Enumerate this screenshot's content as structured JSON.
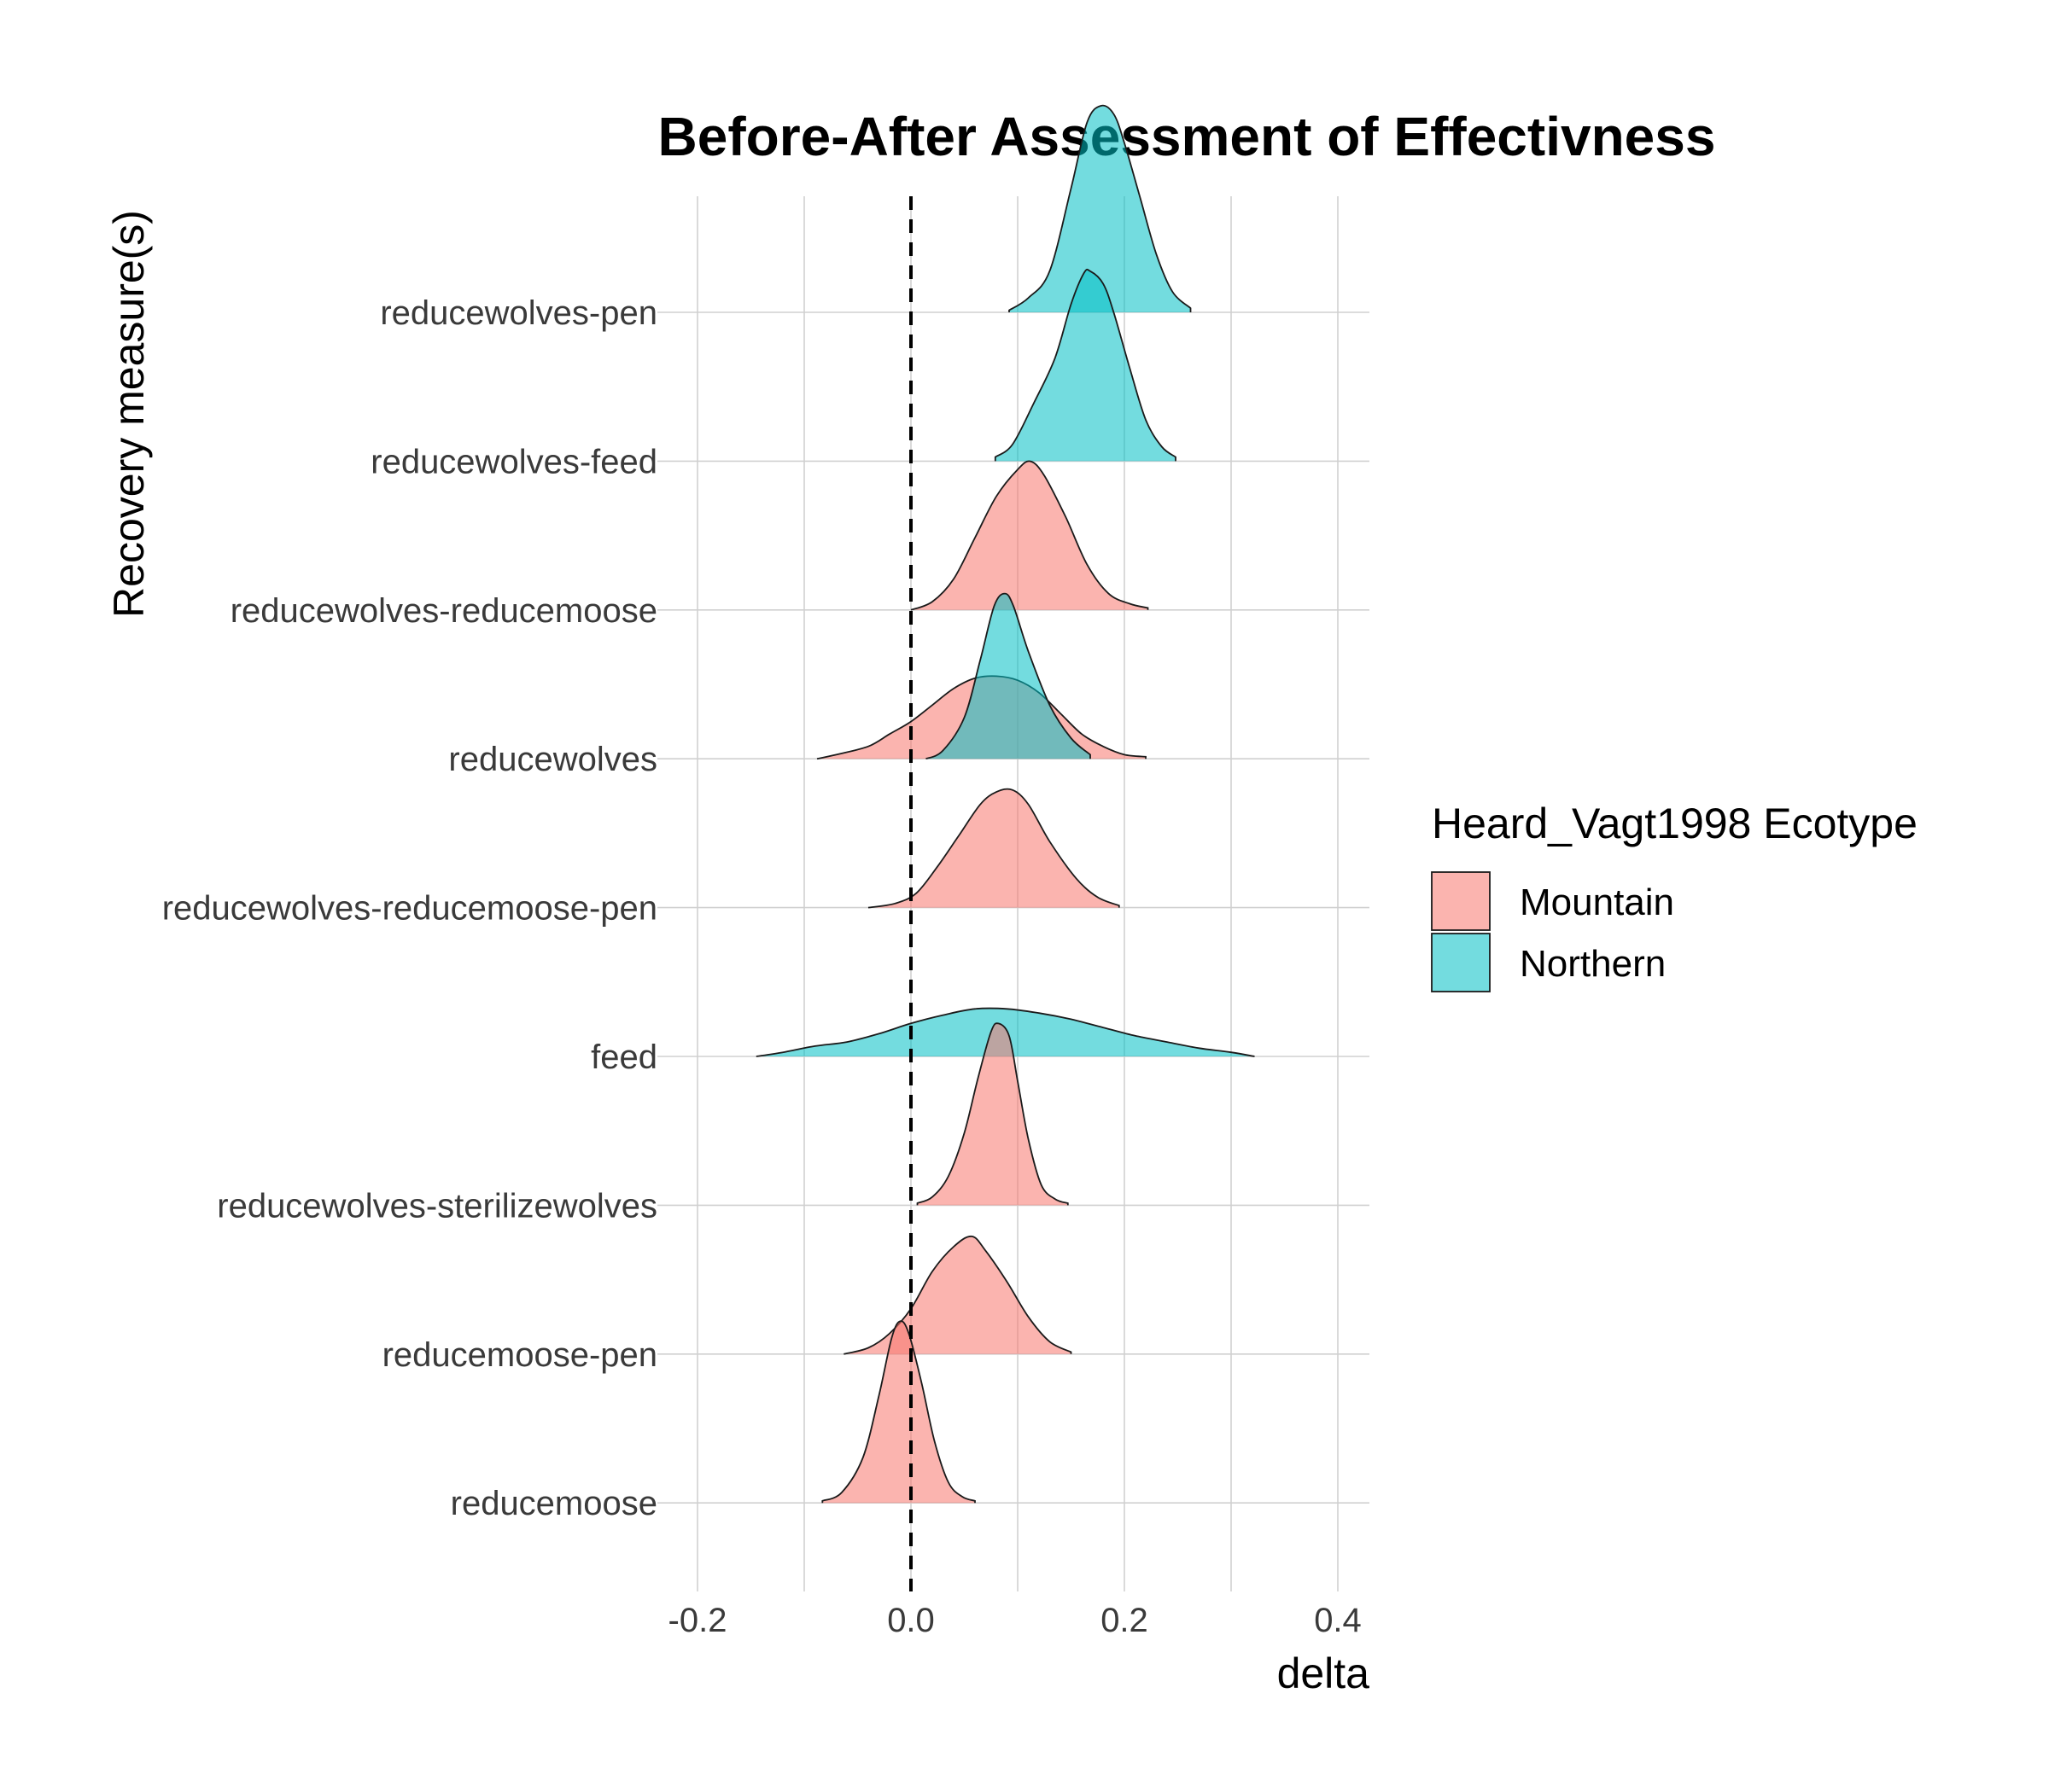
{
  "chart_data": {
    "type": "ridgeline",
    "title": "Before-After Assessment of Effectivness",
    "xlabel": "delta",
    "ylabel": "Recovery measure(s)",
    "xlim": [
      -0.2,
      0.43
    ],
    "x_ticks": [
      "-0.2",
      "0.0",
      "0.2",
      "0.4"
    ],
    "x_tick_values": [
      -0.2,
      0.0,
      0.2,
      0.4
    ],
    "reference_line": {
      "x": 0,
      "style": "dashed"
    },
    "grid": true,
    "legend": {
      "title": "Heard_Vagt1998 Ecotype",
      "position": "right",
      "entries": [
        {
          "name": "Mountain",
          "color": "#F8766D"
        },
        {
          "name": "Northern",
          "color": "#00BFC4"
        }
      ]
    },
    "categories": [
      "reducewolves-pen",
      "reducewolves-feed",
      "reducewolves-reducemoose",
      "reducewolves",
      "reducewolves-reducemoose-pen",
      "feed",
      "reducewolves-sterilizewolves",
      "reducemoose-pen",
      "reducemoose"
    ],
    "distributions": [
      {
        "category": "reducewolves-pen",
        "ecotype": "Northern",
        "points": [
          [
            0.092,
            0.01
          ],
          [
            0.11,
            0.07
          ],
          [
            0.13,
            0.2
          ],
          [
            0.15,
            0.6
          ],
          [
            0.165,
            0.92
          ],
          [
            0.178,
            1.0
          ],
          [
            0.19,
            0.96
          ],
          [
            0.2,
            0.82
          ],
          [
            0.215,
            0.55
          ],
          [
            0.23,
            0.28
          ],
          [
            0.245,
            0.1
          ],
          [
            0.262,
            0.02
          ]
        ]
      },
      {
        "category": "reducewolves-feed",
        "ecotype": "Northern",
        "points": [
          [
            0.079,
            0.02
          ],
          [
            0.095,
            0.08
          ],
          [
            0.115,
            0.28
          ],
          [
            0.135,
            0.5
          ],
          [
            0.15,
            0.76
          ],
          [
            0.162,
            0.91
          ],
          [
            0.168,
            0.92
          ],
          [
            0.18,
            0.86
          ],
          [
            0.19,
            0.72
          ],
          [
            0.205,
            0.45
          ],
          [
            0.22,
            0.2
          ],
          [
            0.235,
            0.07
          ],
          [
            0.248,
            0.02
          ]
        ]
      },
      {
        "category": "reducewolves-reducemoose",
        "ecotype": "Mountain",
        "points": [
          [
            0.0,
            0.0
          ],
          [
            0.02,
            0.04
          ],
          [
            0.04,
            0.15
          ],
          [
            0.06,
            0.35
          ],
          [
            0.08,
            0.55
          ],
          [
            0.1,
            0.68
          ],
          [
            0.112,
            0.72
          ],
          [
            0.125,
            0.65
          ],
          [
            0.145,
            0.45
          ],
          [
            0.165,
            0.22
          ],
          [
            0.185,
            0.08
          ],
          [
            0.205,
            0.03
          ],
          [
            0.222,
            0.01
          ]
        ]
      },
      {
        "category": "reducewolves",
        "ecotype": "Mountain",
        "points": [
          [
            -0.088,
            0.0
          ],
          [
            -0.07,
            0.02
          ],
          [
            -0.04,
            0.06
          ],
          [
            -0.02,
            0.12
          ],
          [
            0.0,
            0.18
          ],
          [
            0.02,
            0.26
          ],
          [
            0.04,
            0.34
          ],
          [
            0.06,
            0.39
          ],
          [
            0.08,
            0.4
          ],
          [
            0.1,
            0.38
          ],
          [
            0.12,
            0.32
          ],
          [
            0.14,
            0.22
          ],
          [
            0.16,
            0.12
          ],
          [
            0.18,
            0.06
          ],
          [
            0.2,
            0.02
          ],
          [
            0.22,
            0.01
          ]
        ]
      },
      {
        "category": "reducewolves",
        "ecotype": "Northern",
        "points": [
          [
            0.014,
            0.0
          ],
          [
            0.03,
            0.04
          ],
          [
            0.05,
            0.2
          ],
          [
            0.065,
            0.48
          ],
          [
            0.078,
            0.74
          ],
          [
            0.088,
            0.8
          ],
          [
            0.096,
            0.74
          ],
          [
            0.11,
            0.52
          ],
          [
            0.13,
            0.26
          ],
          [
            0.15,
            0.1
          ],
          [
            0.168,
            0.02
          ]
        ]
      },
      {
        "category": "reducewolves-reducemoose-pen",
        "ecotype": "Mountain",
        "points": [
          [
            -0.04,
            0.0
          ],
          [
            -0.015,
            0.02
          ],
          [
            0.005,
            0.07
          ],
          [
            0.025,
            0.2
          ],
          [
            0.045,
            0.35
          ],
          [
            0.065,
            0.5
          ],
          [
            0.08,
            0.56
          ],
          [
            0.095,
            0.57
          ],
          [
            0.11,
            0.5
          ],
          [
            0.13,
            0.32
          ],
          [
            0.155,
            0.14
          ],
          [
            0.175,
            0.05
          ],
          [
            0.195,
            0.01
          ]
        ]
      },
      {
        "category": "feed",
        "ecotype": "Northern",
        "points": [
          [
            -0.145,
            0.0
          ],
          [
            -0.12,
            0.02
          ],
          [
            -0.09,
            0.05
          ],
          [
            -0.06,
            0.07
          ],
          [
            -0.03,
            0.11
          ],
          [
            0.0,
            0.16
          ],
          [
            0.03,
            0.2
          ],
          [
            0.06,
            0.23
          ],
          [
            0.09,
            0.23
          ],
          [
            0.12,
            0.21
          ],
          [
            0.15,
            0.18
          ],
          [
            0.18,
            0.14
          ],
          [
            0.21,
            0.1
          ],
          [
            0.24,
            0.07
          ],
          [
            0.27,
            0.04
          ],
          [
            0.3,
            0.02
          ],
          [
            0.322,
            0.0
          ]
        ]
      },
      {
        "category": "reducewolves-sterilizewolves",
        "ecotype": "Mountain",
        "points": [
          [
            0.006,
            0.01
          ],
          [
            0.02,
            0.04
          ],
          [
            0.035,
            0.14
          ],
          [
            0.05,
            0.35
          ],
          [
            0.063,
            0.62
          ],
          [
            0.075,
            0.84
          ],
          [
            0.082,
            0.88
          ],
          [
            0.092,
            0.82
          ],
          [
            0.1,
            0.6
          ],
          [
            0.11,
            0.32
          ],
          [
            0.122,
            0.1
          ],
          [
            0.135,
            0.03
          ],
          [
            0.147,
            0.01
          ]
        ]
      },
      {
        "category": "reducemoose-pen",
        "ecotype": "Mountain",
        "points": [
          [
            -0.063,
            0.0
          ],
          [
            -0.04,
            0.03
          ],
          [
            -0.02,
            0.1
          ],
          [
            0.0,
            0.22
          ],
          [
            0.02,
            0.4
          ],
          [
            0.04,
            0.52
          ],
          [
            0.057,
            0.57
          ],
          [
            0.07,
            0.5
          ],
          [
            0.09,
            0.35
          ],
          [
            0.11,
            0.18
          ],
          [
            0.13,
            0.06
          ],
          [
            0.15,
            0.01
          ]
        ]
      },
      {
        "category": "reducemoose",
        "ecotype": "Mountain",
        "points": [
          [
            -0.083,
            0.01
          ],
          [
            -0.065,
            0.05
          ],
          [
            -0.045,
            0.22
          ],
          [
            -0.03,
            0.52
          ],
          [
            -0.018,
            0.8
          ],
          [
            -0.01,
            0.88
          ],
          [
            -0.002,
            0.82
          ],
          [
            0.01,
            0.58
          ],
          [
            0.022,
            0.3
          ],
          [
            0.035,
            0.1
          ],
          [
            0.048,
            0.03
          ],
          [
            0.06,
            0.01
          ]
        ]
      }
    ]
  }
}
